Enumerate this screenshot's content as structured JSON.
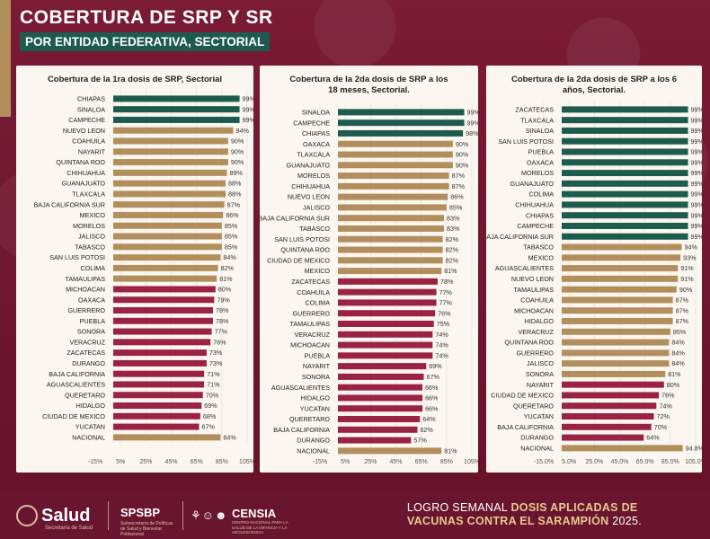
{
  "header": {
    "title": "COBERTURA DE SRP Y SR",
    "subtitle": "POR ENTIDAD FEDERATIVA, SECTORIAL"
  },
  "colors": {
    "green": "#1e5b4f",
    "gold": "#b38e5d",
    "red": "#9b2247",
    "grid": "#dddddd"
  },
  "chart_data": [
    {
      "type": "bar",
      "orientation": "horizontal",
      "title": "Cobertura de la 1ra dosis de SRP, Sectorial",
      "categories": [
        "CHIAPAS",
        "SINALOA",
        "CAMPECHE",
        "NUEVO LEON",
        "COAHUILA",
        "NAYARIT",
        "QUINTANA ROO",
        "CHIHUAHUA",
        "GUANAJUATO",
        "TLAXCALA",
        "BAJA CALIFORNIA SUR",
        "MEXICO",
        "MORELOS",
        "JALISCO",
        "TABASCO",
        "SAN LUIS POTOSI",
        "COLIMA",
        "TAMAULIPAS",
        "MICHOACAN",
        "OAXACA",
        "GUERRERO",
        "PUEBLA",
        "SONORA",
        "VERACRUZ",
        "ZACATECAS",
        "DURANGO",
        "BAJA CALIFORNIA",
        "AGUASCALIENTES",
        "QUERETARO",
        "HIDALGO",
        "CIUDAD DE MEXICO",
        "YUCATAN",
        "NACIONAL"
      ],
      "values": [
        99,
        99,
        99,
        94,
        90,
        90,
        90,
        89,
        88,
        88,
        87,
        86,
        85,
        85,
        85,
        84,
        82,
        81,
        80,
        79,
        78,
        78,
        77,
        76,
        73,
        73,
        71,
        71,
        70,
        69,
        68,
        67,
        84
      ],
      "value_labels": [
        "99%",
        "99%",
        "99%",
        "94%",
        "90%",
        "90%",
        "90%",
        "89%",
        "88%",
        "88%",
        "87%",
        "86%",
        "85%",
        "85%",
        "85%",
        "84%",
        "82%",
        "81%",
        "80%",
        "79%",
        "78%",
        "78%",
        "77%",
        "76%",
        "73%",
        "73%",
        "71%",
        "71%",
        "70%",
        "69%",
        "68%",
        "67%",
        "84%"
      ],
      "bar_colors": [
        "green",
        "green",
        "green",
        "gold",
        "gold",
        "gold",
        "gold",
        "gold",
        "gold",
        "gold",
        "gold",
        "gold",
        "gold",
        "gold",
        "gold",
        "gold",
        "gold",
        "gold",
        "red",
        "red",
        "red",
        "red",
        "red",
        "red",
        "red",
        "red",
        "red",
        "red",
        "red",
        "red",
        "red",
        "red",
        "gold"
      ],
      "xlim": [
        -15,
        105
      ],
      "tick_values": [
        -15,
        5,
        25,
        45,
        65,
        85,
        105
      ],
      "tick_labels": [
        "-15%",
        "5%",
        "25%",
        "45%",
        "65%",
        "85%",
        "105%"
      ]
    },
    {
      "type": "bar",
      "orientation": "horizontal",
      "title": "Cobertura de la 2da dosis de SRP a los 18 meses, Sectorial.",
      "categories": [
        "SINALOA",
        "CAMPECHE",
        "CHIAPAS",
        "OAXACA",
        "TLAXCALA",
        "GUANAJUATO",
        "MORELOS",
        "CHIHUAHUA",
        "NUEVO LEON",
        "JALISCO",
        "BAJA CALIFORNIA SUR",
        "TABASCO",
        "SAN LUIS POTOSI",
        "QUINTANA ROO",
        "CIUDAD DE MEXICO",
        "MEXICO",
        "ZACATECAS",
        "COAHUILA",
        "COLIMA",
        "GUERRERO",
        "TAMAULIPAS",
        "VERACRUZ",
        "MICHOACAN",
        "PUEBLA",
        "NAYARIT",
        "SONORA",
        "AGUASCALIENTES",
        "HIDALGO",
        "YUCATAN",
        "QUERETARO",
        "BAJA CALIFORNIA",
        "DURANGO",
        "NACIONAL"
      ],
      "values": [
        99,
        99,
        98,
        90,
        90,
        90,
        87,
        87,
        86,
        85,
        83,
        83,
        82,
        82,
        82,
        81,
        78,
        77,
        77,
        76,
        75,
        74,
        74,
        74,
        69,
        67,
        66,
        66,
        66,
        64,
        62,
        57,
        81
      ],
      "value_labels": [
        "99%",
        "99%",
        "98%",
        "90%",
        "90%",
        "90%",
        "87%",
        "87%",
        "86%",
        "85%",
        "83%",
        "83%",
        "82%",
        "82%",
        "82%",
        "81%",
        "78%",
        "77%",
        "77%",
        "76%",
        "75%",
        "74%",
        "74%",
        "74%",
        "69%",
        "67%",
        "66%",
        "66%",
        "66%",
        "64%",
        "62%",
        "57%",
        "81%"
      ],
      "bar_colors": [
        "green",
        "green",
        "green",
        "gold",
        "gold",
        "gold",
        "gold",
        "gold",
        "gold",
        "gold",
        "gold",
        "gold",
        "gold",
        "gold",
        "gold",
        "gold",
        "red",
        "red",
        "red",
        "red",
        "red",
        "red",
        "red",
        "red",
        "red",
        "red",
        "red",
        "red",
        "red",
        "red",
        "red",
        "red",
        "gold"
      ],
      "xlim": [
        -15,
        105
      ],
      "tick_values": [
        -15,
        5,
        25,
        45,
        65,
        85,
        105
      ],
      "tick_labels": [
        "-15%",
        "5%",
        "25%",
        "45%",
        "65%",
        "85%",
        "105%"
      ]
    },
    {
      "type": "bar",
      "orientation": "horizontal",
      "title": "Cobertura de la 2da dosis de SRP a los 6 años, Sectorial.",
      "categories": [
        "ZACATECAS",
        "TLAXCALA",
        "SINALOA",
        "SAN LUIS POTOSI",
        "PUEBLA",
        "OAXACA",
        "MORELOS",
        "GUANAJUATO",
        "COLIMA",
        "CHIHUAHUA",
        "CHIAPAS",
        "CAMPECHE",
        "BAJA CALIFORNIA SUR",
        "TABASCO",
        "MEXICO",
        "AGUASCALIENTES",
        "NUEVO LEON",
        "TAMAULIPAS",
        "COAHUILA",
        "MICHOACAN",
        "HIDALGO",
        "VERACRUZ",
        "QUINTANA ROO",
        "GUERRERO",
        "JALISCO",
        "SONORA",
        "NAYARIT",
        "CIUDAD DE MEXICO",
        "QUERETARO",
        "YUCATAN",
        "BAJA CALIFORNIA",
        "DURANGO",
        "NACIONAL"
      ],
      "values": [
        99,
        99,
        99,
        99,
        99,
        99,
        99,
        99,
        99,
        99,
        99,
        99,
        99,
        94,
        93,
        91,
        91,
        90,
        87,
        87,
        87,
        85,
        84,
        84,
        84,
        81,
        80,
        76,
        74,
        72,
        70,
        64,
        94.8
      ],
      "value_labels": [
        "99%",
        "99%",
        "99%",
        "99%",
        "99%",
        "99%",
        "99%",
        "99%",
        "99%",
        "99%",
        "99%",
        "99%",
        "99%",
        "94%",
        "93%",
        "91%",
        "91%",
        "90%",
        "87%",
        "87%",
        "87%",
        "85%",
        "84%",
        "84%",
        "84%",
        "81%",
        "80%",
        "76%",
        "74%",
        "72%",
        "70%",
        "64%",
        "94.8%"
      ],
      "bar_colors": [
        "green",
        "green",
        "green",
        "green",
        "green",
        "green",
        "green",
        "green",
        "green",
        "green",
        "green",
        "green",
        "green",
        "gold",
        "gold",
        "gold",
        "gold",
        "gold",
        "gold",
        "gold",
        "gold",
        "gold",
        "gold",
        "gold",
        "gold",
        "gold",
        "red",
        "red",
        "red",
        "red",
        "red",
        "red",
        "gold"
      ],
      "xlim": [
        -15,
        105
      ],
      "tick_values": [
        -15,
        5,
        25,
        45,
        65,
        85,
        105
      ],
      "tick_labels": [
        "-15.0%",
        "5.0%",
        "25.0%",
        "45.0%",
        "65.0%",
        "85.0%",
        "105.0%"
      ]
    }
  ],
  "footer": {
    "salud": "Salud",
    "salud_sub": "Secretaría de Salud",
    "spsbp": "SPSBP",
    "spsbp_sub": "Subsecretaría de Políticas de Salud y Bienestar Poblacional",
    "censia": "CENSIA",
    "censia_sub": "CENTRO NACIONAL PARA LA SALUD DE LA INFANCIA Y LA ADOLESCENCIA",
    "logro_prefix": "LOGRO SEMANAL ",
    "logro_bold1": "DOSIS APLICADAS DE",
    "logro_bold2": "VACUNAS CONTRA EL SARAMPIÓN",
    "logro_suffix": " 2025."
  }
}
